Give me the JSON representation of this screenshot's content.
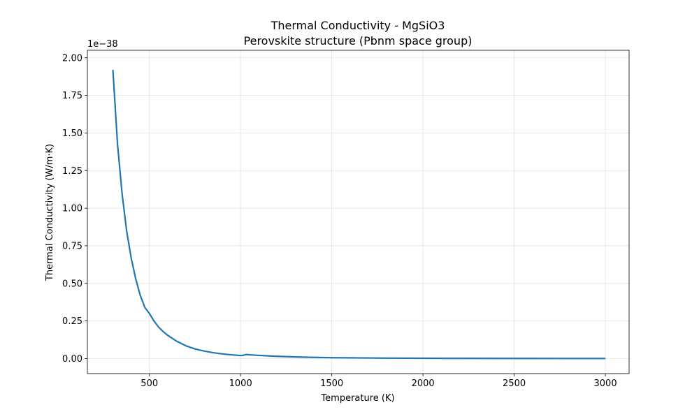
{
  "chart_data": {
    "type": "line",
    "title": "Thermal Conductivity - MgSiO3",
    "subtitle": "Perovskite structure (Pbnm space group)",
    "xlabel": "Temperature (K)",
    "ylabel": "Thermal Conductivity (W/m·K)",
    "y_offset_label": "1e−38",
    "xlim": [
      160,
      3130
    ],
    "ylim": [
      -0.1,
      2.05
    ],
    "x_ticks": [
      500,
      1000,
      1500,
      2000,
      2500,
      3000
    ],
    "x_tick_labels": [
      "500",
      "1000",
      "1500",
      "2000",
      "2500",
      "3000"
    ],
    "y_ticks": [
      0.0,
      0.25,
      0.5,
      0.75,
      1.0,
      1.25,
      1.5,
      1.75,
      2.0
    ],
    "y_tick_labels": [
      "0.00",
      "0.25",
      "0.50",
      "0.75",
      "1.00",
      "1.25",
      "1.50",
      "1.75",
      "2.00"
    ],
    "grid": true,
    "series": [
      {
        "color": "#1f77b4",
        "x": [
          300,
          325,
          350,
          375,
          400,
          425,
          450,
          475,
          500,
          525,
          550,
          575,
          600,
          650,
          700,
          750,
          800,
          850,
          900,
          950,
          1000,
          1015,
          1030,
          1050,
          1100,
          1200,
          1300,
          1400,
          1500,
          1600,
          1800,
          2000,
          2200,
          2500,
          2800,
          3000
        ],
        "y": [
          1.92,
          1.43,
          1.1,
          0.85,
          0.67,
          0.53,
          0.42,
          0.34,
          0.3,
          0.25,
          0.21,
          0.18,
          0.155,
          0.115,
          0.085,
          0.064,
          0.05,
          0.039,
          0.031,
          0.025,
          0.02,
          0.022,
          0.027,
          0.025,
          0.021,
          0.015,
          0.011,
          0.008,
          0.006,
          0.005,
          0.003,
          0.002,
          0.0015,
          0.001,
          0.0008,
          0.0007
        ]
      }
    ]
  }
}
